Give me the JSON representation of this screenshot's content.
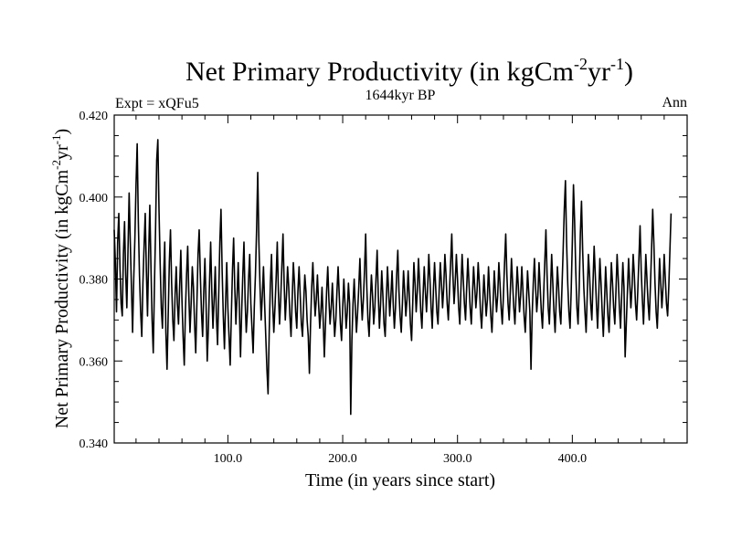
{
  "chart_data": {
    "type": "line",
    "title": "Net Primary Productivity (in kgCm",
    "title_sup1": "-2",
    "title_mid": "yr",
    "title_sup2": "-1",
    "title_end": ")",
    "subtitle_left": "Expt = xQFu5",
    "subtitle_center": "1644kyr BP",
    "subtitle_right": "Ann",
    "xlabel": "Time (in years since start)",
    "ylabel": "Net Primary Productivity (in kgCm",
    "ylabel_sup1": "-2",
    "ylabel_mid": "yr",
    "ylabel_sup2": "-1",
    "ylabel_end": ")",
    "xlim": [
      1,
      500
    ],
    "ylim": [
      0.34,
      0.42
    ],
    "xticks": [
      100,
      200,
      300,
      400
    ],
    "xtick_labels": [
      "100.0",
      "200.0",
      "300.0",
      "400.0"
    ],
    "yticks": [
      0.34,
      0.36,
      0.38,
      0.4,
      0.42
    ],
    "ytick_labels": [
      "0.340",
      "0.360",
      "0.380",
      "0.400",
      "0.420"
    ],
    "grid": false,
    "series": [
      {
        "name": "NPP",
        "color": "#000000",
        "x_start": 1,
        "x_step": 1,
        "values": [
          0.392,
          0.384,
          0.372,
          0.389,
          0.396,
          0.383,
          0.374,
          0.371,
          0.386,
          0.394,
          0.381,
          0.373,
          0.387,
          0.401,
          0.389,
          0.378,
          0.367,
          0.38,
          0.39,
          0.403,
          0.413,
          0.394,
          0.381,
          0.372,
          0.366,
          0.379,
          0.388,
          0.396,
          0.382,
          0.371,
          0.386,
          0.398,
          0.383,
          0.37,
          0.362,
          0.378,
          0.392,
          0.409,
          0.414,
          0.397,
          0.384,
          0.373,
          0.368,
          0.38,
          0.389,
          0.367,
          0.358,
          0.371,
          0.384,
          0.392,
          0.379,
          0.37,
          0.365,
          0.376,
          0.383,
          0.374,
          0.369,
          0.378,
          0.387,
          0.375,
          0.366,
          0.359,
          0.372,
          0.381,
          0.388,
          0.376,
          0.367,
          0.374,
          0.383,
          0.378,
          0.369,
          0.362,
          0.374,
          0.386,
          0.392,
          0.381,
          0.372,
          0.366,
          0.377,
          0.385,
          0.374,
          0.36,
          0.368,
          0.379,
          0.389,
          0.377,
          0.368,
          0.375,
          0.383,
          0.371,
          0.364,
          0.376,
          0.389,
          0.397,
          0.382,
          0.371,
          0.363,
          0.374,
          0.384,
          0.373,
          0.366,
          0.359,
          0.371,
          0.382,
          0.39,
          0.378,
          0.369,
          0.376,
          0.384,
          0.373,
          0.361,
          0.372,
          0.381,
          0.389,
          0.375,
          0.367,
          0.372,
          0.38,
          0.386,
          0.374,
          0.368,
          0.362,
          0.373,
          0.381,
          0.392,
          0.406,
          0.389,
          0.378,
          0.37,
          0.376,
          0.383,
          0.374,
          0.366,
          0.358,
          0.352,
          0.367,
          0.379,
          0.386,
          0.374,
          0.367,
          0.373,
          0.38,
          0.389,
          0.377,
          0.369,
          0.375,
          0.383,
          0.391,
          0.379,
          0.37,
          0.376,
          0.383,
          0.378,
          0.371,
          0.366,
          0.375,
          0.384,
          0.379,
          0.372,
          0.368,
          0.377,
          0.383,
          0.376,
          0.369,
          0.366,
          0.374,
          0.381,
          0.377,
          0.37,
          0.366,
          0.357,
          0.369,
          0.378,
          0.384,
          0.377,
          0.371,
          0.375,
          0.381,
          0.374,
          0.368,
          0.372,
          0.378,
          0.37,
          0.361,
          0.369,
          0.377,
          0.383,
          0.375,
          0.369,
          0.373,
          0.379,
          0.372,
          0.366,
          0.37,
          0.377,
          0.383,
          0.376,
          0.369,
          0.365,
          0.373,
          0.38,
          0.374,
          0.368,
          0.372,
          0.379,
          0.374,
          0.347,
          0.365,
          0.374,
          0.38,
          0.373,
          0.367,
          0.372,
          0.378,
          0.385,
          0.376,
          0.37,
          0.375,
          0.382,
          0.391,
          0.378,
          0.37,
          0.366,
          0.374,
          0.381,
          0.376,
          0.369,
          0.373,
          0.38,
          0.387,
          0.376,
          0.368,
          0.374,
          0.382,
          0.376,
          0.369,
          0.366,
          0.375,
          0.383,
          0.377,
          0.371,
          0.376,
          0.382,
          0.374,
          0.368,
          0.373,
          0.381,
          0.387,
          0.377,
          0.371,
          0.367,
          0.374,
          0.382,
          0.377,
          0.371,
          0.375,
          0.382,
          0.376,
          0.369,
          0.365,
          0.374,
          0.384,
          0.379,
          0.372,
          0.377,
          0.385,
          0.379,
          0.372,
          0.368,
          0.376,
          0.383,
          0.377,
          0.372,
          0.378,
          0.386,
          0.38,
          0.373,
          0.368,
          0.377,
          0.384,
          0.378,
          0.372,
          0.369,
          0.377,
          0.384,
          0.379,
          0.373,
          0.378,
          0.386,
          0.381,
          0.374,
          0.37,
          0.377,
          0.384,
          0.391,
          0.381,
          0.374,
          0.379,
          0.386,
          0.38,
          0.373,
          0.369,
          0.378,
          0.386,
          0.38,
          0.374,
          0.37,
          0.378,
          0.385,
          0.379,
          0.373,
          0.369,
          0.376,
          0.383,
          0.378,
          0.373,
          0.377,
          0.384,
          0.379,
          0.372,
          0.368,
          0.374,
          0.381,
          0.376,
          0.371,
          0.375,
          0.383,
          0.377,
          0.371,
          0.367,
          0.374,
          0.382,
          0.377,
          0.372,
          0.376,
          0.384,
          0.379,
          0.373,
          0.369,
          0.376,
          0.384,
          0.391,
          0.381,
          0.374,
          0.37,
          0.377,
          0.385,
          0.379,
          0.373,
          0.369,
          0.376,
          0.383,
          0.378,
          0.372,
          0.376,
          0.383,
          0.377,
          0.371,
          0.367,
          0.374,
          0.382,
          0.377,
          0.372,
          0.358,
          0.371,
          0.379,
          0.385,
          0.378,
          0.372,
          0.376,
          0.384,
          0.378,
          0.372,
          0.368,
          0.376,
          0.384,
          0.392,
          0.381,
          0.373,
          0.369,
          0.377,
          0.386,
          0.379,
          0.372,
          0.367,
          0.375,
          0.383,
          0.378,
          0.372,
          0.369,
          0.378,
          0.387,
          0.397,
          0.404,
          0.389,
          0.379,
          0.372,
          0.368,
          0.377,
          0.389,
          0.403,
          0.394,
          0.382,
          0.373,
          0.369,
          0.378,
          0.391,
          0.399,
          0.387,
          0.378,
          0.372,
          0.367,
          0.376,
          0.386,
          0.381,
          0.374,
          0.37,
          0.379,
          0.388,
          0.381,
          0.374,
          0.368,
          0.376,
          0.385,
          0.379,
          0.372,
          0.366,
          0.374,
          0.383,
          0.377,
          0.371,
          0.367,
          0.375,
          0.384,
          0.379,
          0.373,
          0.369,
          0.377,
          0.386,
          0.38,
          0.373,
          0.368,
          0.376,
          0.384,
          0.378,
          0.361,
          0.369,
          0.377,
          0.385,
          0.379,
          0.373,
          0.378,
          0.386,
          0.381,
          0.374,
          0.37,
          0.377,
          0.385,
          0.393,
          0.382,
          0.375,
          0.369,
          0.377,
          0.386,
          0.38,
          0.374,
          0.37,
          0.378,
          0.387,
          0.397,
          0.389,
          0.379,
          0.372,
          0.368,
          0.376,
          0.385,
          0.379,
          0.373,
          0.378,
          0.386,
          0.38,
          0.374,
          0.371,
          0.378,
          0.387,
          0.396
        ]
      }
    ]
  }
}
